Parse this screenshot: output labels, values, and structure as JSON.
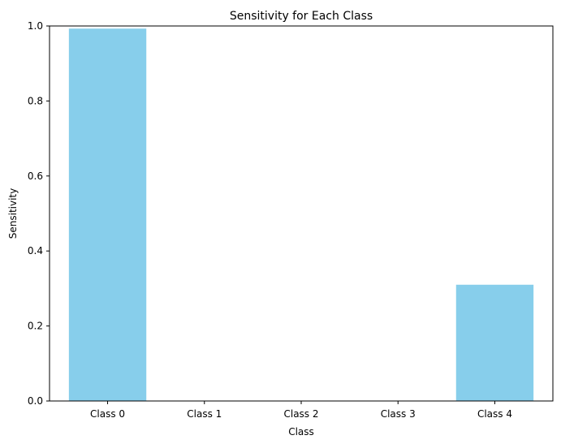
{
  "chart_data": {
    "type": "bar",
    "title": "Sensitivity for Each Class",
    "xlabel": "Class",
    "ylabel": "Sensitivity",
    "categories": [
      "Class 0",
      "Class 1",
      "Class 2",
      "Class 3",
      "Class 4"
    ],
    "values": [
      0.993,
      0.0,
      0.0,
      0.0,
      0.31
    ],
    "ylim": [
      0,
      1.0
    ],
    "yticks": [
      "0.0",
      "0.2",
      "0.4",
      "0.6",
      "0.8",
      "1.0"
    ],
    "bar_color": "#87ceeb",
    "grid": false,
    "legend": "none"
  }
}
